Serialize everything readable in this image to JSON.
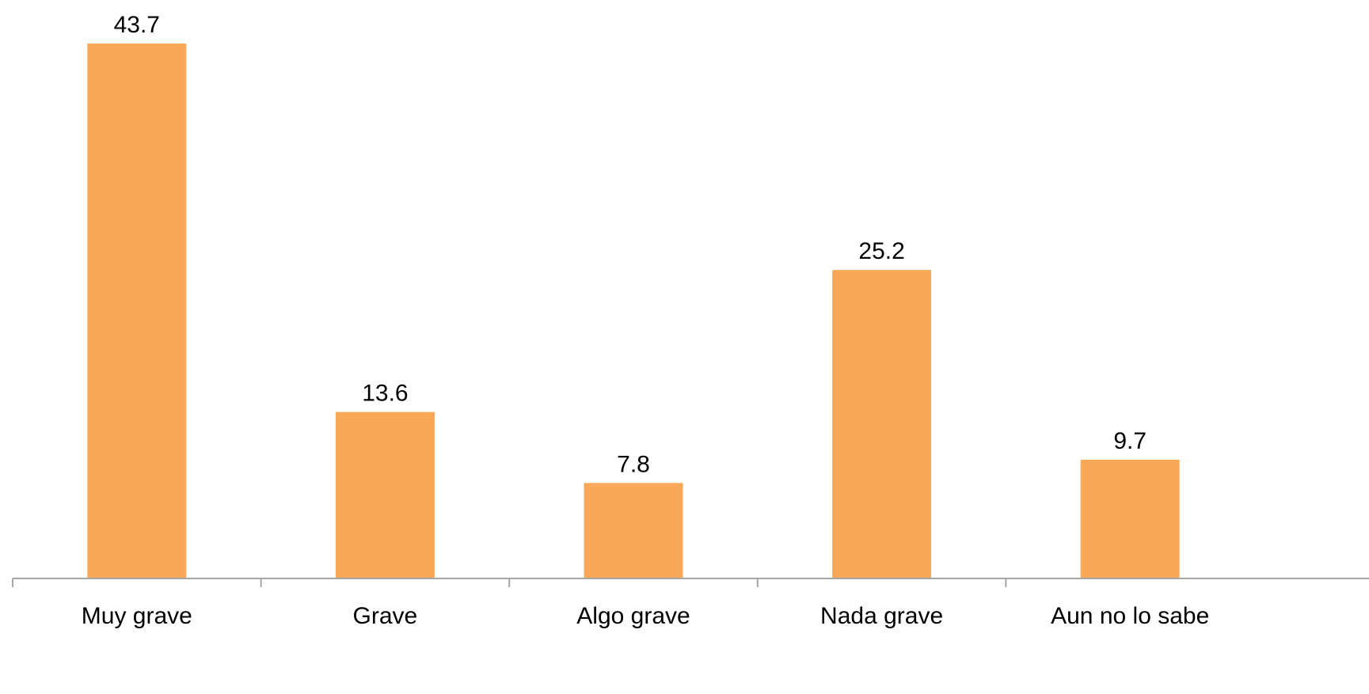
{
  "chart_data": {
    "type": "bar",
    "categories": [
      "Muy grave",
      "Grave",
      "Algo grave",
      "Nada grave",
      "Aun no lo sabe"
    ],
    "values": [
      43.7,
      13.6,
      7.8,
      25.2,
      9.7
    ],
    "value_labels": [
      "43.7",
      "13.6",
      "7.8",
      "25.2",
      "9.7"
    ],
    "ylim": [
      0,
      43.7
    ],
    "grid": false,
    "legend": "none",
    "bar_color": "#F9A857",
    "axis_color": "#a6a6a6"
  }
}
